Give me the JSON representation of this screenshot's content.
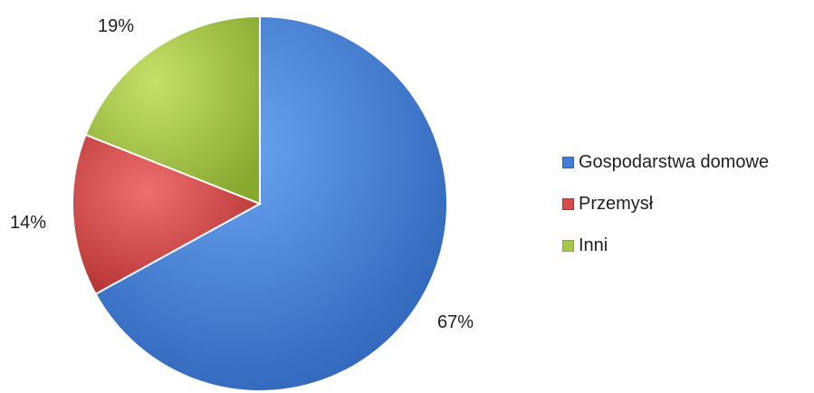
{
  "chart_data": {
    "type": "pie",
    "title": "",
    "legend": "right",
    "slices": [
      {
        "label": "Gospodarstwa domowe",
        "value": 67,
        "display": "67%",
        "color": "#3f7fd9"
      },
      {
        "label": "Przemysł",
        "value": 14,
        "display": "14%",
        "color": "#d84a4a"
      },
      {
        "label": "Inni",
        "value": 19,
        "display": "19%",
        "color": "#a8c84a"
      }
    ]
  }
}
